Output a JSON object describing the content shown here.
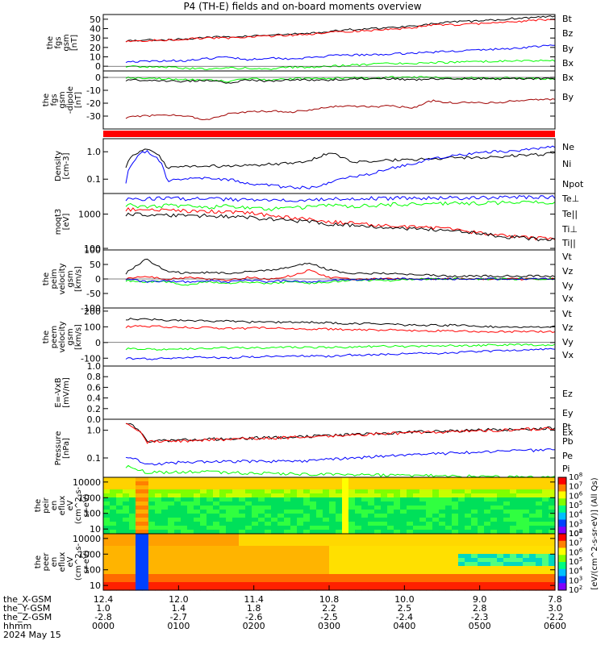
{
  "title": "P4 (TH-E) fields and on-board moments overview",
  "colors": {
    "black": "#000000",
    "red": "#ff0000",
    "green": "#00ff00",
    "blue": "#0000ff",
    "darkred": "#a00000"
  },
  "chart_data": [
    {
      "type": "line",
      "id": "fgs_gsm",
      "ylabel_lines": [
        "the",
        "fgs",
        "gsm",
        "[nT]"
      ],
      "ylim": [
        -5,
        55
      ],
      "yticks": [
        0,
        10,
        20,
        30,
        40,
        50
      ],
      "series": [
        {
          "name": "Bt",
          "color": "#000000",
          "values": [
            27,
            28,
            28,
            29,
            31,
            31,
            32,
            33,
            34,
            35,
            37,
            39,
            40,
            41,
            43,
            45,
            47,
            48,
            49,
            51,
            52,
            53
          ]
        },
        {
          "name": "Bz",
          "color": "#ff0000",
          "values": [
            27,
            27,
            28,
            29,
            30,
            30,
            31,
            32,
            33,
            34,
            36,
            37,
            38,
            39,
            41,
            44,
            44,
            45,
            46,
            47,
            49,
            50
          ]
        },
        {
          "name": "By",
          "color": "#0000ff",
          "values": [
            5,
            5,
            6,
            6,
            8,
            10,
            7,
            9,
            8,
            9,
            11,
            12,
            12,
            13,
            14,
            15,
            16,
            17,
            18,
            19,
            21,
            22
          ]
        },
        {
          "name": "Bx",
          "color": "#00ff00",
          "values": [
            0,
            -1,
            -1,
            -2,
            -3,
            -2,
            -2,
            -3,
            -1,
            -1,
            0,
            1,
            2,
            3,
            3,
            4,
            4,
            5,
            5,
            6,
            6,
            6
          ]
        }
      ]
    },
    {
      "type": "line",
      "id": "fgs_dgsm",
      "ylabel_lines": [
        "the",
        "fgs",
        "gsm",
        "-dipole",
        "[nT]"
      ],
      "ylim": [
        -40,
        5
      ],
      "yticks": [
        -30,
        -20,
        -10,
        0
      ],
      "series": [
        {
          "name": "Bx",
          "color": "#00ff00",
          "values": [
            0,
            -1,
            -1,
            -2,
            -2,
            -3,
            -1,
            -2,
            -1,
            -1,
            -1,
            0,
            -1,
            0,
            0,
            0,
            -1,
            0,
            -1,
            0,
            -1,
            -1
          ]
        },
        {
          "name": "By",
          "color": "#000000",
          "values": [
            -2,
            -2,
            -3,
            -3,
            -2,
            -4,
            -2,
            -3,
            -2,
            -2,
            -2,
            -1,
            -1,
            -1,
            -2,
            -1,
            -1,
            -1,
            -1,
            -1,
            -1,
            -1
          ]
        },
        {
          "name": "Bz",
          "color": "#a00000",
          "values": [
            -31,
            -30,
            -29,
            -30,
            -33,
            -28,
            -27,
            -26,
            -27,
            -25,
            -23,
            -22,
            -23,
            -22,
            -24,
            -18,
            -20,
            -19,
            -20,
            -18,
            -17,
            -17
          ]
        }
      ]
    },
    {
      "type": "line",
      "id": "density",
      "ylabel_lines": [
        "Density",
        "[cm-3]"
      ],
      "log": true,
      "ylim": [
        0.03,
        3
      ],
      "yticks": [
        0.1,
        1.0
      ],
      "ytick_labels": [
        "0.1",
        "1.0"
      ],
      "series": [
        {
          "name": "Ne",
          "color": "#ff0000",
          "values": []
        },
        {
          "name": "Ni",
          "color": "#000000",
          "values": [
            0.3,
            1.4,
            0.25,
            0.28,
            0.3,
            0.3,
            0.33,
            0.35,
            0.4,
            0.45,
            0.9,
            0.4,
            0.45,
            0.5,
            0.5,
            0.55,
            0.6,
            0.6,
            0.65,
            0.75,
            0.8,
            0.85
          ]
        },
        {
          "name": "Npot",
          "color": "#0000ff",
          "values": [
            0.08,
            1.1,
            0.09,
            0.1,
            0.11,
            0.1,
            0.07,
            0.06,
            0.05,
            0.05,
            0.07,
            0.12,
            0.15,
            0.25,
            0.35,
            0.55,
            0.7,
            0.9,
            1.0,
            1.1,
            1.3,
            1.5
          ]
        }
      ]
    },
    {
      "type": "line",
      "id": "temperature",
      "ylabel_lines": [
        "moqt3",
        "[eV]"
      ],
      "log": true,
      "ylim": [
        90,
        4000
      ],
      "yticks": [
        100,
        1000
      ],
      "ytick_labels": [
        "100",
        "1000"
      ],
      "series": [
        {
          "name": "Te⊥",
          "color": "#ff0000",
          "values": [
            1400,
            1300,
            1300,
            1250,
            1200,
            1150,
            1100,
            900,
            800,
            700,
            600,
            550,
            500,
            450,
            420,
            400,
            350,
            300,
            250,
            220,
            200,
            190
          ]
        },
        {
          "name": "Te||",
          "color": "#000000",
          "values": [
            1000,
            950,
            950,
            900,
            900,
            850,
            800,
            700,
            650,
            600,
            500,
            480,
            450,
            400,
            380,
            350,
            320,
            280,
            240,
            210,
            190,
            180
          ]
        },
        {
          "name": "Ti⊥",
          "color": "#0000ff",
          "values": [
            2800,
            2800,
            2900,
            2800,
            2800,
            2700,
            2600,
            2500,
            2600,
            2700,
            2800,
            2800,
            2900,
            2900,
            3000,
            3000,
            3000,
            3000,
            3000,
            3100,
            3100,
            3100
          ]
        },
        {
          "name": "Ti||",
          "color": "#00ff00",
          "values": [
            1900,
            1600,
            1800,
            1700,
            1600,
            1700,
            1500,
            1400,
            1500,
            1600,
            1800,
            1700,
            1800,
            1900,
            2000,
            2000,
            2100,
            2100,
            2100,
            2200,
            2200,
            2200
          ]
        }
      ]
    },
    {
      "type": "line",
      "id": "peim_velocity",
      "ylabel_lines": [
        "the",
        "peim",
        "velocity",
        "gsm",
        "[km/s]"
      ],
      "ylim": [
        -100,
        100
      ],
      "yticks": [
        -100,
        -50,
        0,
        50,
        100
      ],
      "series": [
        {
          "name": "Vt",
          "color": "#000000",
          "values": [
            20,
            70,
            25,
            20,
            22,
            20,
            25,
            30,
            40,
            55,
            30,
            20,
            20,
            18,
            15,
            12,
            10,
            10,
            10,
            10,
            10,
            10
          ]
        },
        {
          "name": "Vz",
          "color": "#ff0000",
          "values": [
            0,
            10,
            0,
            5,
            0,
            -5,
            5,
            0,
            10,
            30,
            5,
            0,
            0,
            0,
            0,
            0,
            0,
            0,
            0,
            0,
            0,
            0
          ]
        },
        {
          "name": "Vy",
          "color": "#00ff00",
          "values": [
            -5,
            -10,
            -10,
            -20,
            -10,
            -15,
            -10,
            -15,
            -10,
            -15,
            -10,
            -5,
            -5,
            -5,
            0,
            0,
            0,
            0,
            0,
            0,
            0,
            0
          ]
        },
        {
          "name": "Vx",
          "color": "#0000ff",
          "values": [
            0,
            -10,
            -5,
            -10,
            -5,
            -10,
            -5,
            -10,
            -5,
            -10,
            -5,
            -5,
            0,
            0,
            0,
            0,
            0,
            0,
            0,
            0,
            0,
            0
          ]
        }
      ]
    },
    {
      "type": "line",
      "id": "peem_velocity",
      "ylabel_lines": [
        "the",
        "peem",
        "velocity",
        "gsm",
        "[km/s]"
      ],
      "ylim": [
        -150,
        220
      ],
      "yticks": [
        -100,
        0,
        100,
        200
      ],
      "series": [
        {
          "name": "Vt",
          "color": "#000000",
          "values": [
            150,
            150,
            140,
            140,
            135,
            140,
            130,
            130,
            130,
            130,
            125,
            120,
            120,
            115,
            110,
            110,
            110,
            105,
            100,
            100,
            95,
            100
          ]
        },
        {
          "name": "Vz",
          "color": "#ff0000",
          "values": [
            100,
            105,
            100,
            95,
            95,
            90,
            90,
            95,
            90,
            85,
            85,
            80,
            80,
            80,
            75,
            75,
            75,
            70,
            70,
            70,
            70,
            70
          ]
        },
        {
          "name": "Vy",
          "color": "#00ff00",
          "values": [
            -40,
            -40,
            -45,
            -40,
            -35,
            -35,
            -35,
            -35,
            -30,
            -30,
            -30,
            -30,
            -25,
            -25,
            -25,
            -20,
            -20,
            -20,
            -15,
            -15,
            -15,
            -15
          ]
        },
        {
          "name": "Vx",
          "color": "#0000ff",
          "values": [
            -100,
            -105,
            -100,
            -95,
            -95,
            -100,
            -90,
            -90,
            -85,
            -85,
            -90,
            -80,
            -80,
            -75,
            -70,
            -70,
            -65,
            -60,
            -55,
            -50,
            -45,
            -40
          ]
        }
      ]
    },
    {
      "type": "line",
      "id": "efield",
      "ylabel_lines": [
        "E=-VxB",
        "[mV/m]"
      ],
      "ylim": [
        0,
        1
      ],
      "yticks": [
        0.0,
        0.2,
        0.4,
        0.6,
        0.8,
        1.0
      ],
      "ytick_labels": [
        "0.0",
        "0.2",
        "0.4",
        "0.6",
        "0.8",
        "1.0"
      ],
      "series": [
        {
          "name": "Ez",
          "color": "#ff0000",
          "values": []
        },
        {
          "name": "Ey",
          "color": "#00ff00",
          "values": []
        },
        {
          "name": "Ex",
          "color": "#0000ff",
          "values": []
        }
      ]
    },
    {
      "type": "line",
      "id": "pressure",
      "ylabel_lines": [
        "Pressure",
        "[nPa]"
      ],
      "log": true,
      "ylim": [
        0.02,
        2.5
      ],
      "yticks": [
        0.1,
        1.0
      ],
      "ytick_labels": [
        "0.1",
        "1.0"
      ],
      "series": [
        {
          "name": "Pt",
          "color": "#000000",
          "values": [
            2.0,
            0.4,
            0.42,
            0.45,
            0.48,
            0.5,
            0.52,
            0.55,
            0.58,
            0.6,
            0.65,
            0.7,
            0.75,
            0.8,
            0.85,
            0.9,
            0.95,
            1.0,
            1.05,
            1.1,
            1.15,
            1.2
          ]
        },
        {
          "name": "Pb",
          "color": "#ff0000",
          "values": [
            2.0,
            0.38,
            0.4,
            0.42,
            0.45,
            0.48,
            0.5,
            0.52,
            0.55,
            0.58,
            0.62,
            0.68,
            0.72,
            0.76,
            0.8,
            0.86,
            0.9,
            0.95,
            1.0,
            1.05,
            1.1,
            1.15
          ]
        },
        {
          "name": "Pe",
          "color": "#0000ff",
          "values": [
            0.12,
            0.06,
            0.065,
            0.07,
            0.072,
            0.075,
            0.075,
            0.075,
            0.078,
            0.08,
            0.09,
            0.1,
            0.11,
            0.12,
            0.13,
            0.14,
            0.15,
            0.16,
            0.17,
            0.18,
            0.19,
            0.2
          ]
        },
        {
          "name": "Pi",
          "color": "#00ff00",
          "values": [
            0.05,
            0.03,
            0.03,
            0.032,
            0.032,
            0.03,
            0.028,
            0.028,
            0.027,
            0.026,
            0.025,
            0.025,
            0.024,
            0.024,
            0.023,
            0.023,
            0.022,
            0.022,
            0.021,
            0.021,
            0.02,
            0.02
          ]
        }
      ]
    },
    {
      "type": "heatmap",
      "id": "peir_spec",
      "ylabel_lines": [
        "the",
        "peir",
        "en",
        "eflux",
        "eV",
        "(cm^2-s-",
        "sr-eV)"
      ],
      "ylim": [
        5,
        20000
      ],
      "log": true,
      "yticks": [
        10,
        100,
        1000,
        10000
      ],
      "ytick_labels": [
        "10",
        "100",
        "1000",
        "10000"
      ]
    },
    {
      "type": "heatmap",
      "id": "peer_spec",
      "ylabel_lines": [
        "the",
        "peer",
        "en",
        "eflux",
        "eV",
        "(cm^2-s-",
        "sr-eV)"
      ],
      "ylim": [
        5,
        20000
      ],
      "log": true,
      "yticks": [
        10,
        100,
        1000,
        10000
      ],
      "ytick_labels": [
        "10",
        "100",
        "1000",
        "10000"
      ]
    }
  ],
  "colorbar": {
    "label": "[eV/(cm^2-s-sr-eV)] (All Qs)",
    "tick_exponents": [
      "2",
      "3",
      "4",
      "5",
      "6",
      "7",
      "8"
    ]
  },
  "xaxis": {
    "row_labels": [
      "the_X-GSM",
      "the_Y-GSM",
      "the_Z-GSM",
      "hhmm",
      "2024 May 15"
    ],
    "ticks": [
      {
        "x": "12.4",
        "y": "1.0",
        "z": "-2.8",
        "hhmm": "0000"
      },
      {
        "x": "12.0",
        "y": "1.4",
        "z": "-2.7",
        "hhmm": "0100"
      },
      {
        "x": "11.4",
        "y": "1.8",
        "z": "-2.6",
        "hhmm": "0200"
      },
      {
        "x": "10.8",
        "y": "2.2",
        "z": "-2.5",
        "hhmm": "0300"
      },
      {
        "x": "10.0",
        "y": "2.5",
        "z": "-2.4",
        "hhmm": "0400"
      },
      {
        "x": "9.0",
        "y": "2.8",
        "z": "-2.3",
        "hhmm": "0500"
      },
      {
        "x": "7.8",
        "y": "3.0",
        "z": "-2.2",
        "hhmm": "0600"
      }
    ]
  }
}
